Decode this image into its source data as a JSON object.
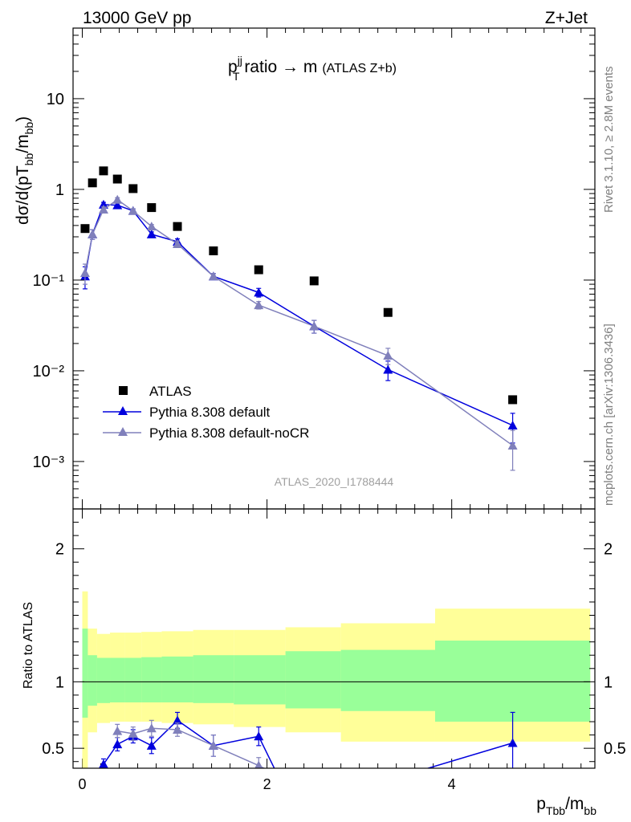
{
  "header": {
    "left": "13000 GeV pp",
    "right": "Z+Jet"
  },
  "panel_title": {
    "main": "p",
    "sup": "jj",
    "sub": "T",
    "text": " ratio → m",
    "small": "(ATLAS Z+b)"
  },
  "side_labels": {
    "rivet": "Rivet 3.1.10, ≥ 2.8M events",
    "mcplots": "mcplots.cern.ch [arXiv:1306.3436]"
  },
  "watermark": "ATLAS_2020_I1788444",
  "y_label": {
    "a": "dσ/d(pT",
    "b": "bb",
    "c": "/m",
    "d": "bb",
    "e": ")"
  },
  "x_label": {
    "a": "p",
    "b": "Tbb",
    "c": "/m",
    "d": "bb"
  },
  "ratio_ylabel": "Ratio to ATLAS",
  "legend": [
    {
      "label": "ATLAS",
      "color": "#000000",
      "marker": "square"
    },
    {
      "label": "Pythia 8.308 default",
      "color": "#0000dd",
      "marker": "triangle"
    },
    {
      "label": "Pythia 8.308 default-noCR",
      "color": "#8080bb",
      "marker": "triangle"
    }
  ],
  "chart_data": {
    "type": "scatter",
    "log_y": true,
    "xlim": [
      -0.1,
      5.55
    ],
    "ylim": [
      0.0003,
      60
    ],
    "x_ticks": [
      "0",
      "2",
      "4"
    ],
    "y_ticks": [
      "10",
      "1",
      "10⁻¹",
      "10⁻²",
      "10⁻³"
    ],
    "series": [
      {
        "name": "ATLAS",
        "color": "#000000",
        "x": [
          0.03,
          0.11,
          0.23,
          0.38,
          0.55,
          0.75,
          1.03,
          1.42,
          1.91,
          2.51,
          3.31,
          4.66
        ],
        "y": [
          0.37,
          1.18,
          1.6,
          1.3,
          1.02,
          0.63,
          0.39,
          0.21,
          0.13,
          0.098,
          0.044,
          0.0048
        ]
      },
      {
        "name": "Pythia 8.308 default",
        "color": "#0000dd",
        "x": [
          0.03,
          0.11,
          0.23,
          0.38,
          0.55,
          0.75,
          1.03,
          1.42,
          1.91,
          2.51,
          3.31,
          4.66
        ],
        "y": [
          0.11,
          0.32,
          0.68,
          0.67,
          0.58,
          0.32,
          0.265,
          0.11,
          0.073,
          0.031,
          0.0103,
          0.0025
        ],
        "err": [
          0.03,
          0.04,
          0.04,
          0.04,
          0.03,
          0.02,
          0.02,
          0.008,
          0.008,
          0.005,
          0.0025,
          0.0009
        ]
      },
      {
        "name": "Pythia 8.308 default-noCR",
        "color": "#8080bb",
        "x": [
          0.03,
          0.11,
          0.23,
          0.38,
          0.55,
          0.75,
          1.03,
          1.42,
          1.91,
          2.51,
          3.31,
          4.66
        ],
        "y": [
          0.12,
          0.32,
          0.6,
          0.77,
          0.58,
          0.39,
          0.25,
          0.11,
          0.053,
          0.031,
          0.0147,
          0.0015
        ],
        "err": [
          0.03,
          0.04,
          0.04,
          0.04,
          0.03,
          0.02,
          0.02,
          0.008,
          0.005,
          0.005,
          0.003,
          0.0007
        ]
      }
    ],
    "ratio": {
      "ylim": [
        0.35,
        2.3
      ],
      "y_ticks": [
        "0.5",
        "1",
        "2"
      ],
      "bins": [
        0,
        0.06,
        0.16,
        0.3,
        0.46,
        0.64,
        0.86,
        1.2,
        1.64,
        2.2,
        2.8,
        3.82,
        5.5
      ],
      "band_inner": [
        [
          0.73,
          1.4
        ],
        [
          0.82,
          1.2
        ],
        [
          0.84,
          1.18
        ],
        [
          0.845,
          1.18
        ],
        [
          0.845,
          1.18
        ],
        [
          0.845,
          1.185
        ],
        [
          0.845,
          1.19
        ],
        [
          0.84,
          1.2
        ],
        [
          0.83,
          1.2
        ],
        [
          0.8,
          1.23
        ],
        [
          0.78,
          1.24
        ],
        [
          0.7,
          1.31
        ]
      ],
      "band_outer": [
        [
          0.3,
          1.68
        ],
        [
          0.62,
          1.4
        ],
        [
          0.69,
          1.36
        ],
        [
          0.7,
          1.37
        ],
        [
          0.7,
          1.37
        ],
        [
          0.7,
          1.375
        ],
        [
          0.69,
          1.38
        ],
        [
          0.68,
          1.39
        ],
        [
          0.66,
          1.39
        ],
        [
          0.62,
          1.41
        ],
        [
          0.55,
          1.44
        ],
        [
          0.55,
          1.55
        ]
      ],
      "series": [
        {
          "name": "Pythia 8.308 default",
          "color": "#0000dd",
          "x": [
            0.23,
            0.38,
            0.55,
            0.75,
            1.03,
            1.42,
            1.91,
            2.1,
            3.6,
            4.66
          ],
          "y": [
            0.38,
            0.53,
            0.59,
            0.52,
            0.71,
            0.52,
            0.59,
            0.32,
            0.32,
            0.54
          ],
          "err": [
            0.04,
            0.05,
            0.05,
            0.06,
            0.06,
            0.08,
            0.07,
            0,
            0,
            0.23
          ]
        },
        {
          "name": "Pythia 8.308 default-noCR",
          "color": "#8080bb",
          "x": [
            0.38,
            0.55,
            0.75,
            1.03,
            1.42,
            1.91,
            2.05
          ],
          "y": [
            0.63,
            0.61,
            0.65,
            0.64,
            0.52,
            0.37,
            0.32
          ],
          "err": [
            0.05,
            0.05,
            0.06,
            0.05,
            0.08,
            0.06,
            0
          ]
        }
      ]
    }
  }
}
